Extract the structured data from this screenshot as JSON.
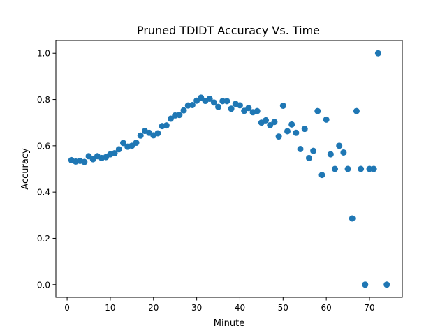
{
  "chart_data": {
    "type": "scatter",
    "title": "Pruned TDIDT Accuracy Vs. Time",
    "xlabel": "Minute",
    "ylabel": "Accuracy",
    "xlim": [
      -2.6,
      77.6
    ],
    "ylim": [
      -0.055,
      1.055
    ],
    "x_ticks": [
      0,
      10,
      20,
      30,
      40,
      50,
      60,
      70
    ],
    "y_ticks": [
      0.0,
      0.2,
      0.4,
      0.6,
      0.8,
      1.0
    ],
    "x_tick_labels": [
      "0",
      "10",
      "20",
      "30",
      "40",
      "50",
      "60",
      "70"
    ],
    "y_tick_labels": [
      "0.0",
      "0.2",
      "0.4",
      "0.6",
      "0.8",
      "1.0"
    ],
    "grid": false,
    "color": "#1f77b4",
    "x": [
      1,
      2,
      3,
      4,
      5,
      6,
      7,
      8,
      9,
      10,
      11,
      12,
      13,
      14,
      15,
      16,
      17,
      18,
      19,
      20,
      21,
      22,
      23,
      24,
      25,
      26,
      27,
      28,
      29,
      30,
      31,
      32,
      33,
      34,
      35,
      36,
      37,
      38,
      39,
      40,
      41,
      42,
      43,
      44,
      45,
      46,
      47,
      48,
      49,
      50,
      51,
      52,
      53,
      54,
      55,
      56,
      57,
      58,
      59,
      60,
      61,
      62,
      63,
      64,
      65,
      66,
      67,
      68,
      69,
      70,
      71,
      72,
      74
    ],
    "y": [
      0.538,
      0.532,
      0.535,
      0.53,
      0.555,
      0.542,
      0.555,
      0.547,
      0.551,
      0.563,
      0.568,
      0.585,
      0.612,
      0.596,
      0.6,
      0.613,
      0.644,
      0.664,
      0.656,
      0.645,
      0.654,
      0.685,
      0.688,
      0.717,
      0.731,
      0.733,
      0.753,
      0.774,
      0.776,
      0.795,
      0.808,
      0.794,
      0.803,
      0.787,
      0.768,
      0.793,
      0.793,
      0.76,
      0.781,
      0.775,
      0.751,
      0.763,
      0.745,
      0.75,
      0.7,
      0.71,
      0.689,
      0.703,
      0.64,
      0.773,
      0.663,
      0.692,
      0.656,
      0.586,
      0.673,
      0.547,
      0.578,
      0.75,
      0.474,
      0.713,
      0.563,
      0.5,
      0.6,
      0.571,
      0.5,
      0.286,
      0.75,
      0.5,
      0.0,
      0.5,
      0.5,
      1.0,
      0.0
    ]
  }
}
